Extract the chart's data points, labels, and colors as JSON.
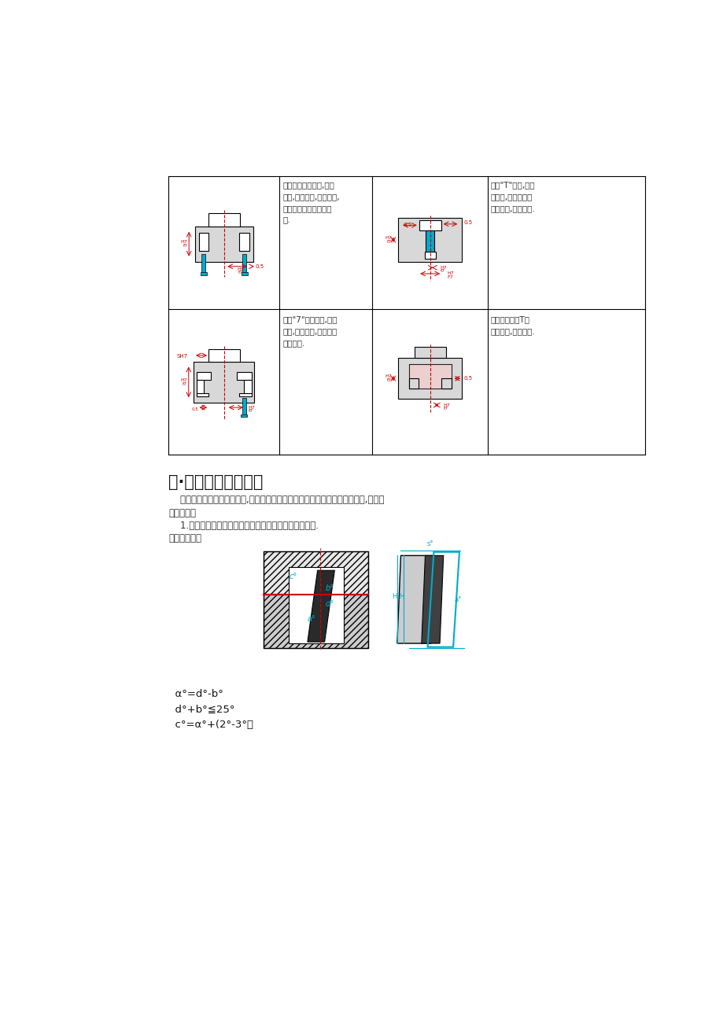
{
  "bg_color": "#ffffff",
  "black": "#000000",
  "red": "#cc0000",
  "cyan": "#00aacc",
  "gray_fill": "#d8d8d8",
  "white": "#ffffff",
  "dark_gray": "#444444",
  "med_gray": "#888888",
  "text_color": "#333333",
  "section_title": "八·倾斜滑块参数计算",
  "para1": "    由于成品的倒勾面是斜方向,因此滑块的运动方向要与成品倒勾斜面方向一致,否侧会",
  "para1b": "拉伤成品。",
  "para2": "    1.滑块抽芯方向与分型面成交角的关系为滑块抽向动模.",
  "para3": "如下图所示：",
  "formula1": "  α°=d°-b°",
  "formula2": "  d°+b°≦25°",
  "formula3": "  c°=α°+(2°-3°）",
  "text_cell11": "用矩形的压板形式,加工\n简单,强度较好,应用广泛,\n压板规格可查标准零件\n表.",
  "text_cell21": "采用\"7\"字形压板,加工\n简单,强度较好,一般要加\n销孔定位.",
  "text_cell13": "采用\"T\"形槽,且装\n块内部,一般用于空\n小的场合,如跑内滑.",
  "text_cell23": "采用镶嵌式的T形\n定性较好,加工困难."
}
